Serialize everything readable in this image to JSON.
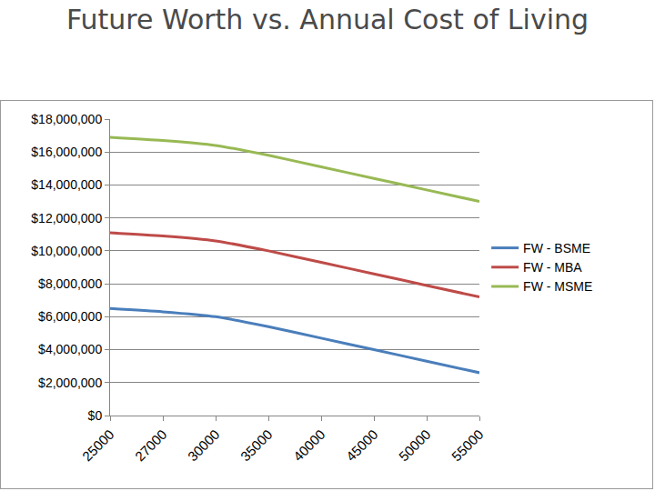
{
  "chart_data": {
    "type": "line",
    "title": "Future Worth vs. Annual Cost of Living",
    "categories": [
      "25000",
      "27000",
      "30000",
      "35000",
      "40000",
      "45000",
      "50000",
      "55000"
    ],
    "series": [
      {
        "name": "FW - BSME",
        "color": "#4a7ebb",
        "values": [
          6500000,
          6300000,
          6000000,
          5400000,
          4700000,
          4000000,
          3300000,
          2600000
        ]
      },
      {
        "name": "FW - MBA",
        "color": "#be4b48",
        "values": [
          11100000,
          10900000,
          10600000,
          10000000,
          9300000,
          8600000,
          7900000,
          7200000
        ]
      },
      {
        "name": "FW - MSME",
        "color": "#98b954",
        "values": [
          16900000,
          16700000,
          16400000,
          15800000,
          15100000,
          14400000,
          13700000,
          13000000
        ]
      }
    ],
    "ylim": [
      0,
      18000000
    ],
    "yticks": [
      {
        "value": 0,
        "label": "$0"
      },
      {
        "value": 2000000,
        "label": "$2,000,000"
      },
      {
        "value": 4000000,
        "label": "$4,000,000"
      },
      {
        "value": 6000000,
        "label": "$6,000,000"
      },
      {
        "value": 8000000,
        "label": "$8,000,000"
      },
      {
        "value": 10000000,
        "label": "$10,000,000"
      },
      {
        "value": 12000000,
        "label": "$12,000,000"
      },
      {
        "value": 14000000,
        "label": "$14,000,000"
      },
      {
        "value": 16000000,
        "label": "$16,000,000"
      },
      {
        "value": 18000000,
        "label": "$18,000,000"
      }
    ],
    "grid": true,
    "legend": "right"
  }
}
